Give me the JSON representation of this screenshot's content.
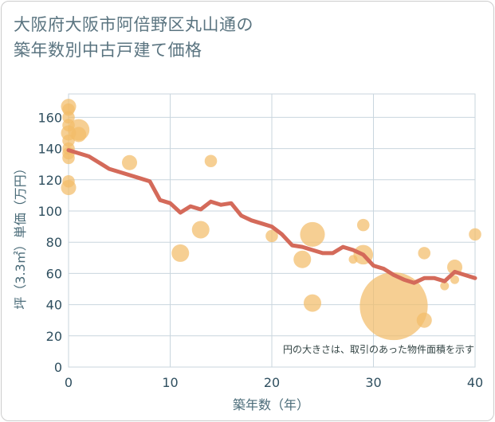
{
  "title": {
    "line1": "大阪府大阪市阿倍野区丸山通の",
    "line2": "築年数別中古戸建て価格"
  },
  "chart_data": {
    "type": "scatter",
    "title": "大阪府大阪市阿倍野区丸山通の築年数別中古戸建て価格",
    "xlabel": "築年数（年）",
    "ylabel": "坪（3.3㎡）単価（万円）",
    "xlim": [
      0,
      40
    ],
    "ylim": [
      0,
      175
    ],
    "xticks": [
      0,
      10,
      20,
      30,
      40
    ],
    "yticks": [
      0,
      20,
      40,
      60,
      80,
      100,
      120,
      140,
      160
    ],
    "grid": true,
    "note": "円の大きさは、取引のあった物件面積を示す",
    "colors": {
      "bubble": "#f3bd6a",
      "line": "#d46a5a",
      "grid": "#c9d6de"
    },
    "scatter": [
      {
        "x": 0,
        "y": 167,
        "size": 3
      },
      {
        "x": 0,
        "y": 165,
        "size": 2
      },
      {
        "x": 0,
        "y": 160,
        "size": 2
      },
      {
        "x": 0,
        "y": 155,
        "size": 2
      },
      {
        "x": 0,
        "y": 150,
        "size": 3
      },
      {
        "x": 0,
        "y": 145,
        "size": 2
      },
      {
        "x": 0,
        "y": 140,
        "size": 2
      },
      {
        "x": 0,
        "y": 137,
        "size": 2
      },
      {
        "x": 0,
        "y": 134,
        "size": 2
      },
      {
        "x": 0,
        "y": 119,
        "size": 2
      },
      {
        "x": 0,
        "y": 115,
        "size": 3
      },
      {
        "x": 1,
        "y": 152,
        "size": 6
      },
      {
        "x": 1,
        "y": 149,
        "size": 3
      },
      {
        "x": 6,
        "y": 131,
        "size": 3
      },
      {
        "x": 11,
        "y": 73,
        "size": 4
      },
      {
        "x": 13,
        "y": 88,
        "size": 4
      },
      {
        "x": 14,
        "y": 132,
        "size": 2
      },
      {
        "x": 20,
        "y": 84,
        "size": 2
      },
      {
        "x": 23,
        "y": 69,
        "size": 4
      },
      {
        "x": 24,
        "y": 85,
        "size": 8
      },
      {
        "x": 24,
        "y": 41,
        "size": 4
      },
      {
        "x": 28,
        "y": 69,
        "size": 1
      },
      {
        "x": 29,
        "y": 91,
        "size": 2
      },
      {
        "x": 29,
        "y": 72,
        "size": 5
      },
      {
        "x": 32,
        "y": 39,
        "size": 60
      },
      {
        "x": 35,
        "y": 73,
        "size": 2
      },
      {
        "x": 35,
        "y": 30,
        "size": 3
      },
      {
        "x": 37,
        "y": 52,
        "size": 1
      },
      {
        "x": 38,
        "y": 64,
        "size": 3
      },
      {
        "x": 38,
        "y": 56,
        "size": 1
      },
      {
        "x": 40,
        "y": 85,
        "size": 2
      }
    ],
    "trend": {
      "x": [
        0,
        1,
        2,
        3,
        4,
        5,
        6,
        7,
        8,
        9,
        10,
        11,
        12,
        13,
        14,
        15,
        16,
        17,
        18,
        19,
        20,
        21,
        22,
        23,
        24,
        25,
        26,
        27,
        28,
        29,
        30,
        31,
        32,
        33,
        34,
        35,
        36,
        37,
        38,
        39,
        40
      ],
      "y": [
        139,
        137,
        135,
        131,
        127,
        125,
        123,
        121,
        119,
        107,
        105,
        99,
        103,
        101,
        106,
        104,
        105,
        97,
        94,
        92,
        90,
        85,
        78,
        77,
        75,
        73,
        73,
        77,
        75,
        72,
        65,
        63,
        59,
        56,
        54,
        57,
        57,
        55,
        61,
        59,
        57
      ]
    }
  }
}
